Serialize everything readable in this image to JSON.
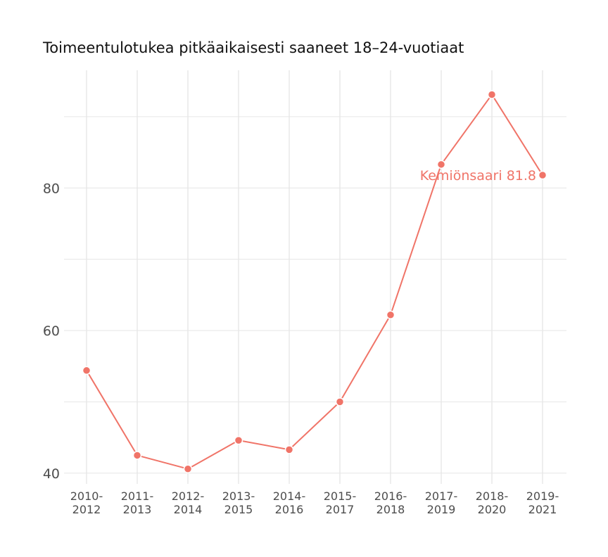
{
  "chart_data": {
    "type": "line",
    "title": "Toimeentulotukea pitkäaikaisesti saaneet 18–24-vuotiaat",
    "xlabel": "",
    "ylabel": "",
    "categories": [
      "2010-\n2012",
      "2011-\n2013",
      "2012-\n2014",
      "2013-\n2015",
      "2014-\n2016",
      "2015-\n2017",
      "2016-\n2018",
      "2017-\n2019",
      "2018-\n2020",
      "2019-\n2021"
    ],
    "series": [
      {
        "name": "Kemiönsaari",
        "values": [
          54.4,
          42.5,
          40.6,
          44.6,
          43.3,
          50.0,
          62.2,
          83.3,
          93.1,
          81.8
        ],
        "color": "#f07468"
      }
    ],
    "annotation": {
      "text": "Kemiönsaari 81.8",
      "category_index": 9,
      "value": 81.8
    },
    "y_ticks": [
      40,
      60,
      80
    ],
    "ylim": [
      38.5,
      96.5
    ],
    "grid": true,
    "legend": "none"
  }
}
